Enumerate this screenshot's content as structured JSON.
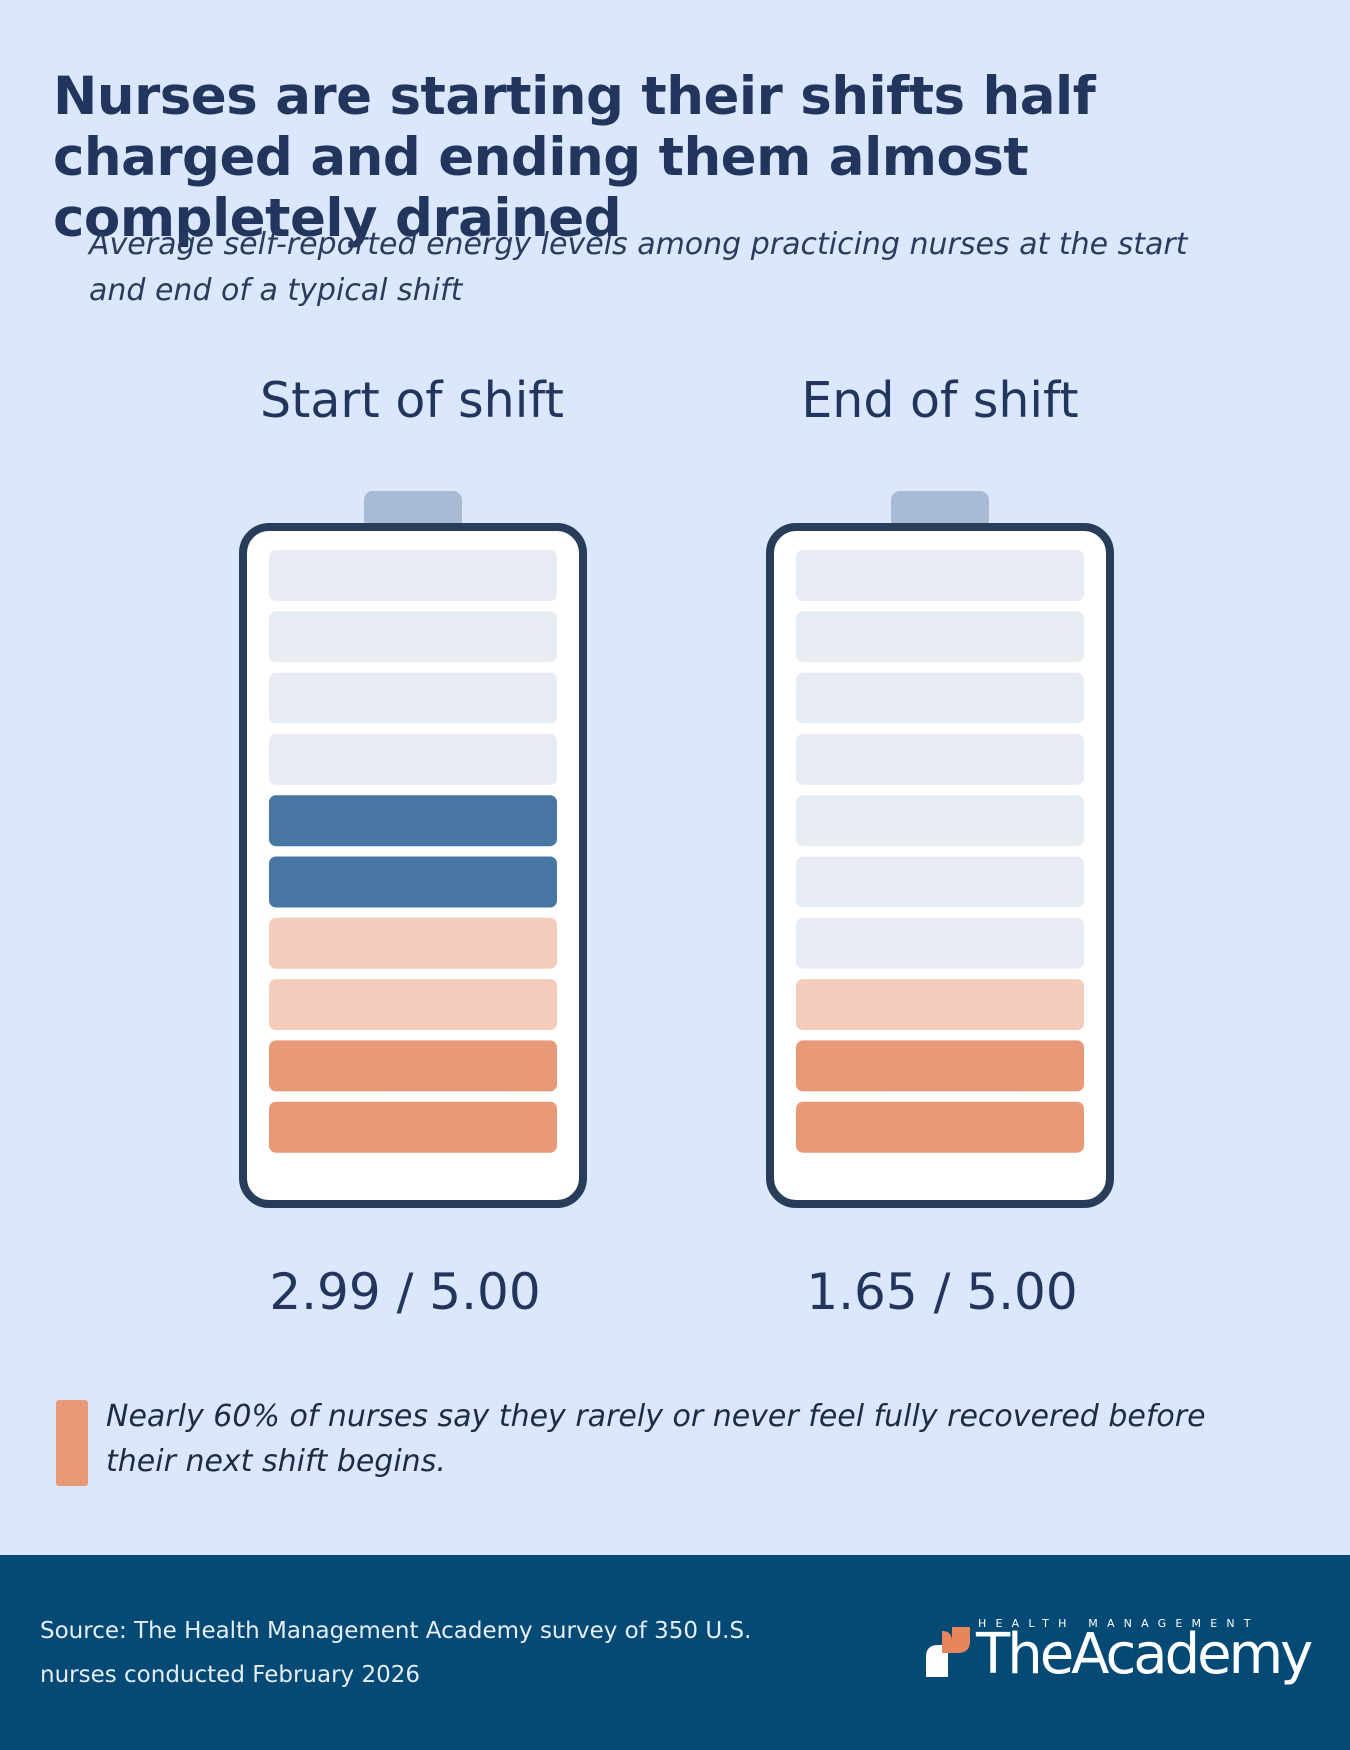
{
  "title": "Nurses are starting their shifts half charged and ending them almost completely drained",
  "subtitle": "Average self-reported energy levels among practicing nurses at the start and end of a typical shift",
  "chart_data": {
    "type": "bar",
    "segments_per_battery": 10,
    "max_score": 5.0,
    "panels": [
      {
        "label": "Start of shift",
        "value": 2.99,
        "score_label": "2.99 / 5.00",
        "filled_segments_from_bottom": [
          "#e89a76",
          "#e89a76",
          "#f3ccbb",
          "#f3ccbb",
          "#4876a2",
          "#4876a2"
        ]
      },
      {
        "label": "End of shift",
        "value": 1.65,
        "score_label": "1.65 / 5.00",
        "filled_segments_from_bottom": [
          "#e89a76",
          "#e89a76",
          "#f3ccbb"
        ]
      }
    ],
    "empty_segment_color": "#e6ecf2",
    "battery_outline_color": "#283d5a",
    "battery_cap_color": "#a9bad4"
  },
  "callout": {
    "text": "Nearly 60% of nurses say they rarely or never feel fully recovered before their next shift begins.",
    "accent_color": "#e89a76"
  },
  "footer": {
    "source": "Source: The Health Management Academy survey of 350 U.S. nurses conducted February 2026",
    "background": "#044a74",
    "logo": {
      "small_text": "HEALTH MANAGEMENT",
      "main_text": "TheAcademy",
      "icon": "academy-logo-icon"
    }
  }
}
